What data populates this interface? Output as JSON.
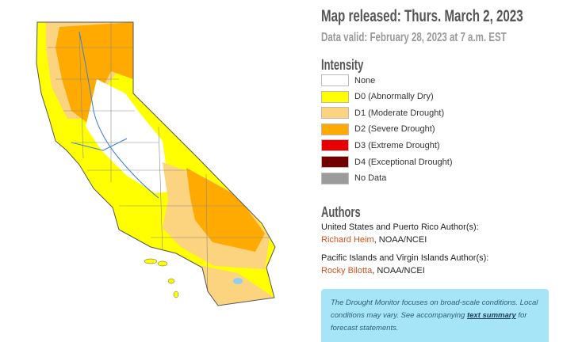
{
  "header": {
    "title": "Map released: Thurs. March 2, 2023",
    "subtitle": "Data valid: February 28, 2023 at 7 a.m. EST"
  },
  "legend": {
    "title": "Intensity",
    "items": [
      {
        "label": "None",
        "color": "#ffffff"
      },
      {
        "label": "D0 (Abnormally Dry)",
        "color": "#ffff00"
      },
      {
        "label": "D1 (Moderate Drought)",
        "color": "#fcd37f"
      },
      {
        "label": "D2 (Severe Drought)",
        "color": "#ffaa00"
      },
      {
        "label": "D3 (Extreme Drought)",
        "color": "#e60000"
      },
      {
        "label": "D4 (Exceptional Drought)",
        "color": "#730000"
      },
      {
        "label": "No Data",
        "color": "#9b9b9b"
      }
    ]
  },
  "authors": {
    "title": "Authors",
    "groups": [
      {
        "label": "United States and Puerto Rico Author(s):",
        "name": "Richard Heim",
        "org": ", NOAA/NCEI"
      },
      {
        "label": "Pacific Islands and Virgin Islands Author(s):",
        "name": "Rocky Bilotta",
        "org": ", NOAA/NCEI"
      }
    ]
  },
  "note": {
    "before": "The Drought Monitor focuses on broad-scale conditions. Local conditions may vary. See accompanying ",
    "link": "text summary",
    "after": " for forecast statements."
  }
}
